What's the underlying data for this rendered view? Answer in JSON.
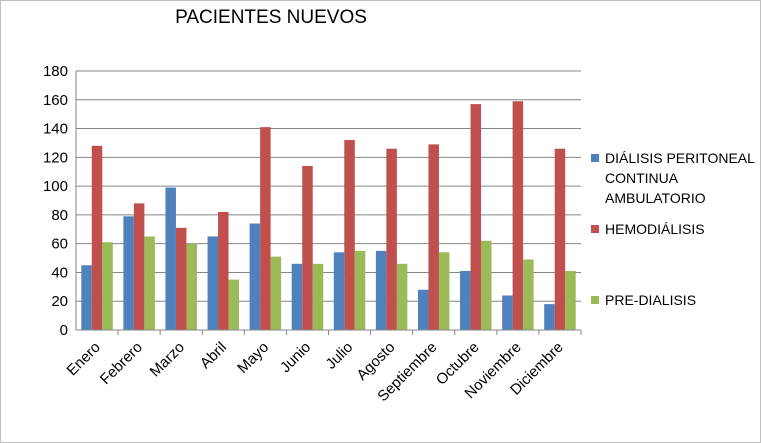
{
  "chart_data": {
    "type": "bar",
    "title": "PACIENTES NUEVOS",
    "categories": [
      "Enero",
      "Febrero",
      "Marzo",
      "Abril",
      "Mayo",
      "Junio",
      "Julio",
      "Agosto",
      "Septiembre",
      "Octubre",
      "Noviembre",
      "Diciembre"
    ],
    "series": [
      {
        "name": "DIÁLISIS PERITONEAL CONTINUA AMBULATORIO",
        "color": "#4f81bd",
        "values": [
          45,
          79,
          99,
          65,
          74,
          46,
          54,
          55,
          28,
          41,
          24,
          18
        ]
      },
      {
        "name": "HEMODIÁLISIS",
        "color": "#c0504d",
        "values": [
          128,
          88,
          71,
          82,
          141,
          114,
          132,
          126,
          129,
          157,
          159,
          126
        ]
      },
      {
        "name": "PRE-DIALISIS",
        "color": "#9bbb59",
        "values": [
          61,
          65,
          60,
          35,
          51,
          46,
          55,
          46,
          54,
          62,
          49,
          41
        ]
      }
    ],
    "ylim": [
      0,
      180
    ],
    "yticks": [
      0,
      20,
      40,
      60,
      80,
      100,
      120,
      140,
      160,
      180
    ],
    "grid": true,
    "legend_position": "right"
  }
}
